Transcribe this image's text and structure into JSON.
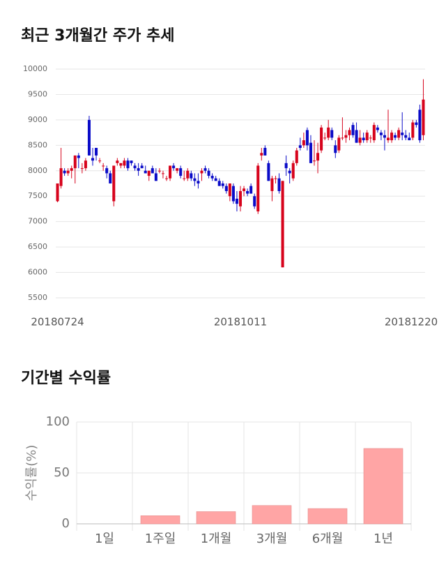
{
  "chart_data": [
    {
      "type": "candlestick",
      "title": "최근 3개월간 주가 추세",
      "categories": [
        "20180724",
        null,
        null,
        null,
        null,
        null,
        null,
        null,
        null,
        null,
        null,
        null,
        null,
        null,
        null,
        null,
        null,
        null,
        null,
        null,
        null,
        null,
        null,
        null,
        null,
        null,
        null,
        null,
        null,
        null,
        null,
        null,
        null,
        null,
        null,
        null,
        null,
        null,
        null,
        null,
        null,
        null,
        null,
        null,
        null,
        null,
        null,
        null,
        null,
        null,
        null,
        null,
        "20181011",
        null,
        null,
        null,
        null,
        null,
        null,
        null,
        null,
        null,
        null,
        null,
        null,
        null,
        null,
        null,
        null,
        null,
        null,
        null,
        null,
        null,
        null,
        null,
        null,
        null,
        null,
        null,
        null,
        null,
        null,
        null,
        null,
        null,
        null,
        null,
        null,
        null,
        null,
        null,
        null,
        null,
        null,
        null,
        null,
        null,
        null,
        null,
        null,
        null,
        null,
        null,
        "20181220"
      ],
      "open": [
        7400,
        7700,
        8000,
        7950,
        8000,
        8050,
        8300,
        8050,
        8050,
        9000,
        8250,
        8450,
        8200,
        8100,
        8050,
        7950,
        7400,
        8150,
        8100,
        8100,
        8200,
        8200,
        8100,
        8050,
        8100,
        8000,
        7900,
        8050,
        7950,
        8000,
        7950,
        7850,
        7850,
        8100,
        8000,
        8050,
        7850,
        7850,
        7950,
        7850,
        7800,
        7950,
        8050,
        8000,
        7900,
        7850,
        7800,
        7750,
        7700,
        7500,
        7700,
        7450,
        7300,
        7600,
        7600,
        7700,
        7500,
        7200,
        8300,
        8450,
        8150,
        7600,
        7850,
        7850,
        6100,
        8150,
        8000,
        7850,
        8150,
        8500,
        8500,
        8800,
        8550,
        8200,
        8200,
        8400,
        8650,
        8650,
        8800,
        8500,
        8400,
        8650,
        8650,
        8700,
        8900,
        8800,
        8550,
        8650,
        8600,
        8650,
        8600,
        8850,
        8750,
        8700,
        8600,
        8600,
        8700,
        8650,
        8750,
        8700,
        8650,
        8650,
        8950,
        9200,
        8700
      ],
      "high": [
        7750,
        8450,
        8050,
        8050,
        8100,
        8300,
        8350,
        8150,
        8250,
        9080,
        8450,
        8450,
        8250,
        8150,
        8100,
        8000,
        8100,
        8250,
        8150,
        8250,
        8250,
        8200,
        8150,
        8150,
        8150,
        8100,
        8000,
        8100,
        8050,
        8050,
        8000,
        7900,
        8100,
        8150,
        8050,
        8100,
        8000,
        8050,
        8000,
        7950,
        7950,
        8050,
        8100,
        8050,
        7950,
        7900,
        7850,
        7800,
        7750,
        7750,
        7750,
        7600,
        7700,
        7700,
        7650,
        7750,
        7550,
        8150,
        8450,
        8500,
        8200,
        7900,
        7900,
        7950,
        7800,
        8300,
        8050,
        8200,
        8450,
        8650,
        8750,
        8850,
        8700,
        8600,
        8550,
        8900,
        8750,
        9000,
        8850,
        8600,
        8700,
        9050,
        8800,
        8850,
        8950,
        8950,
        8800,
        8750,
        8800,
        8700,
        8950,
        8900,
        8800,
        8800,
        9200,
        8800,
        8750,
        8850,
        9150,
        8800,
        8750,
        9000,
        9000,
        9300,
        9800
      ],
      "low": [
        7380,
        7650,
        7900,
        7900,
        7850,
        7750,
        8050,
        7950,
        8000,
        8300,
        8100,
        8200,
        8150,
        8000,
        7850,
        7750,
        7300,
        8100,
        8050,
        8050,
        8000,
        8100,
        8000,
        7900,
        8050,
        7950,
        7800,
        7950,
        7800,
        7950,
        7850,
        7800,
        7800,
        8000,
        7950,
        7850,
        7800,
        7800,
        7800,
        7700,
        7650,
        7800,
        7950,
        7850,
        7800,
        7800,
        7700,
        7650,
        7550,
        7400,
        7350,
        7200,
        7200,
        7500,
        7500,
        7550,
        7250,
        7150,
        8200,
        8300,
        7800,
        7400,
        7750,
        7550,
        6100,
        7900,
        7750,
        7800,
        8100,
        8400,
        8450,
        8400,
        8150,
        8100,
        7950,
        8350,
        8600,
        8600,
        8600,
        8250,
        8350,
        8600,
        8550,
        8600,
        8650,
        8550,
        8500,
        8550,
        8550,
        8550,
        8550,
        8750,
        8600,
        8400,
        8550,
        8550,
        8600,
        8600,
        8600,
        8600,
        8600,
        8600,
        8850,
        8550,
        8600
      ],
      "close": [
        7750,
        8050,
        7950,
        8000,
        8050,
        8300,
        8250,
        8050,
        8200,
        8300,
        8200,
        8300,
        8200,
        8100,
        7950,
        7750,
        8100,
        8200,
        8150,
        8200,
        8050,
        8150,
        8050,
        8000,
        8050,
        7950,
        8000,
        7950,
        7800,
        8000,
        7950,
        7850,
        8100,
        8050,
        8050,
        7900,
        7850,
        8000,
        7850,
        7800,
        7750,
        8000,
        8000,
        7900,
        7850,
        7800,
        7700,
        7700,
        7600,
        7750,
        7400,
        7350,
        7600,
        7650,
        7550,
        7550,
        7300,
        8100,
        8350,
        8300,
        7800,
        7850,
        7850,
        7600,
        7800,
        8050,
        7950,
        8150,
        8400,
        8450,
        8600,
        8500,
        8150,
        8200,
        8350,
        8850,
        8650,
        8850,
        8650,
        8350,
        8650,
        8650,
        8700,
        8800,
        8700,
        8550,
        8650,
        8600,
        8750,
        8650,
        8900,
        8800,
        8700,
        8650,
        8650,
        8750,
        8650,
        8800,
        8700,
        8650,
        8600,
        8950,
        8900,
        8600,
        9400
      ],
      "up_color": "#d7031c",
      "down_color": "#0a0bc8",
      "ylim": [
        5500,
        10000
      ],
      "yticks": [
        5500,
        6000,
        6500,
        7000,
        7500,
        8000,
        8500,
        9000,
        9500,
        10000
      ],
      "grid": true
    },
    {
      "type": "bar",
      "title": "기간별 수익률",
      "ylabel": "수익률(%)",
      "categories": [
        "1일",
        "1주일",
        "1개월",
        "3개월",
        "6개월",
        "1년"
      ],
      "values": [
        0,
        8,
        12,
        18,
        15,
        74
      ],
      "color": "#ffa5a5",
      "ylim": [
        0,
        100
      ],
      "yticks": [
        0,
        50,
        100
      ],
      "grid": true
    }
  ]
}
